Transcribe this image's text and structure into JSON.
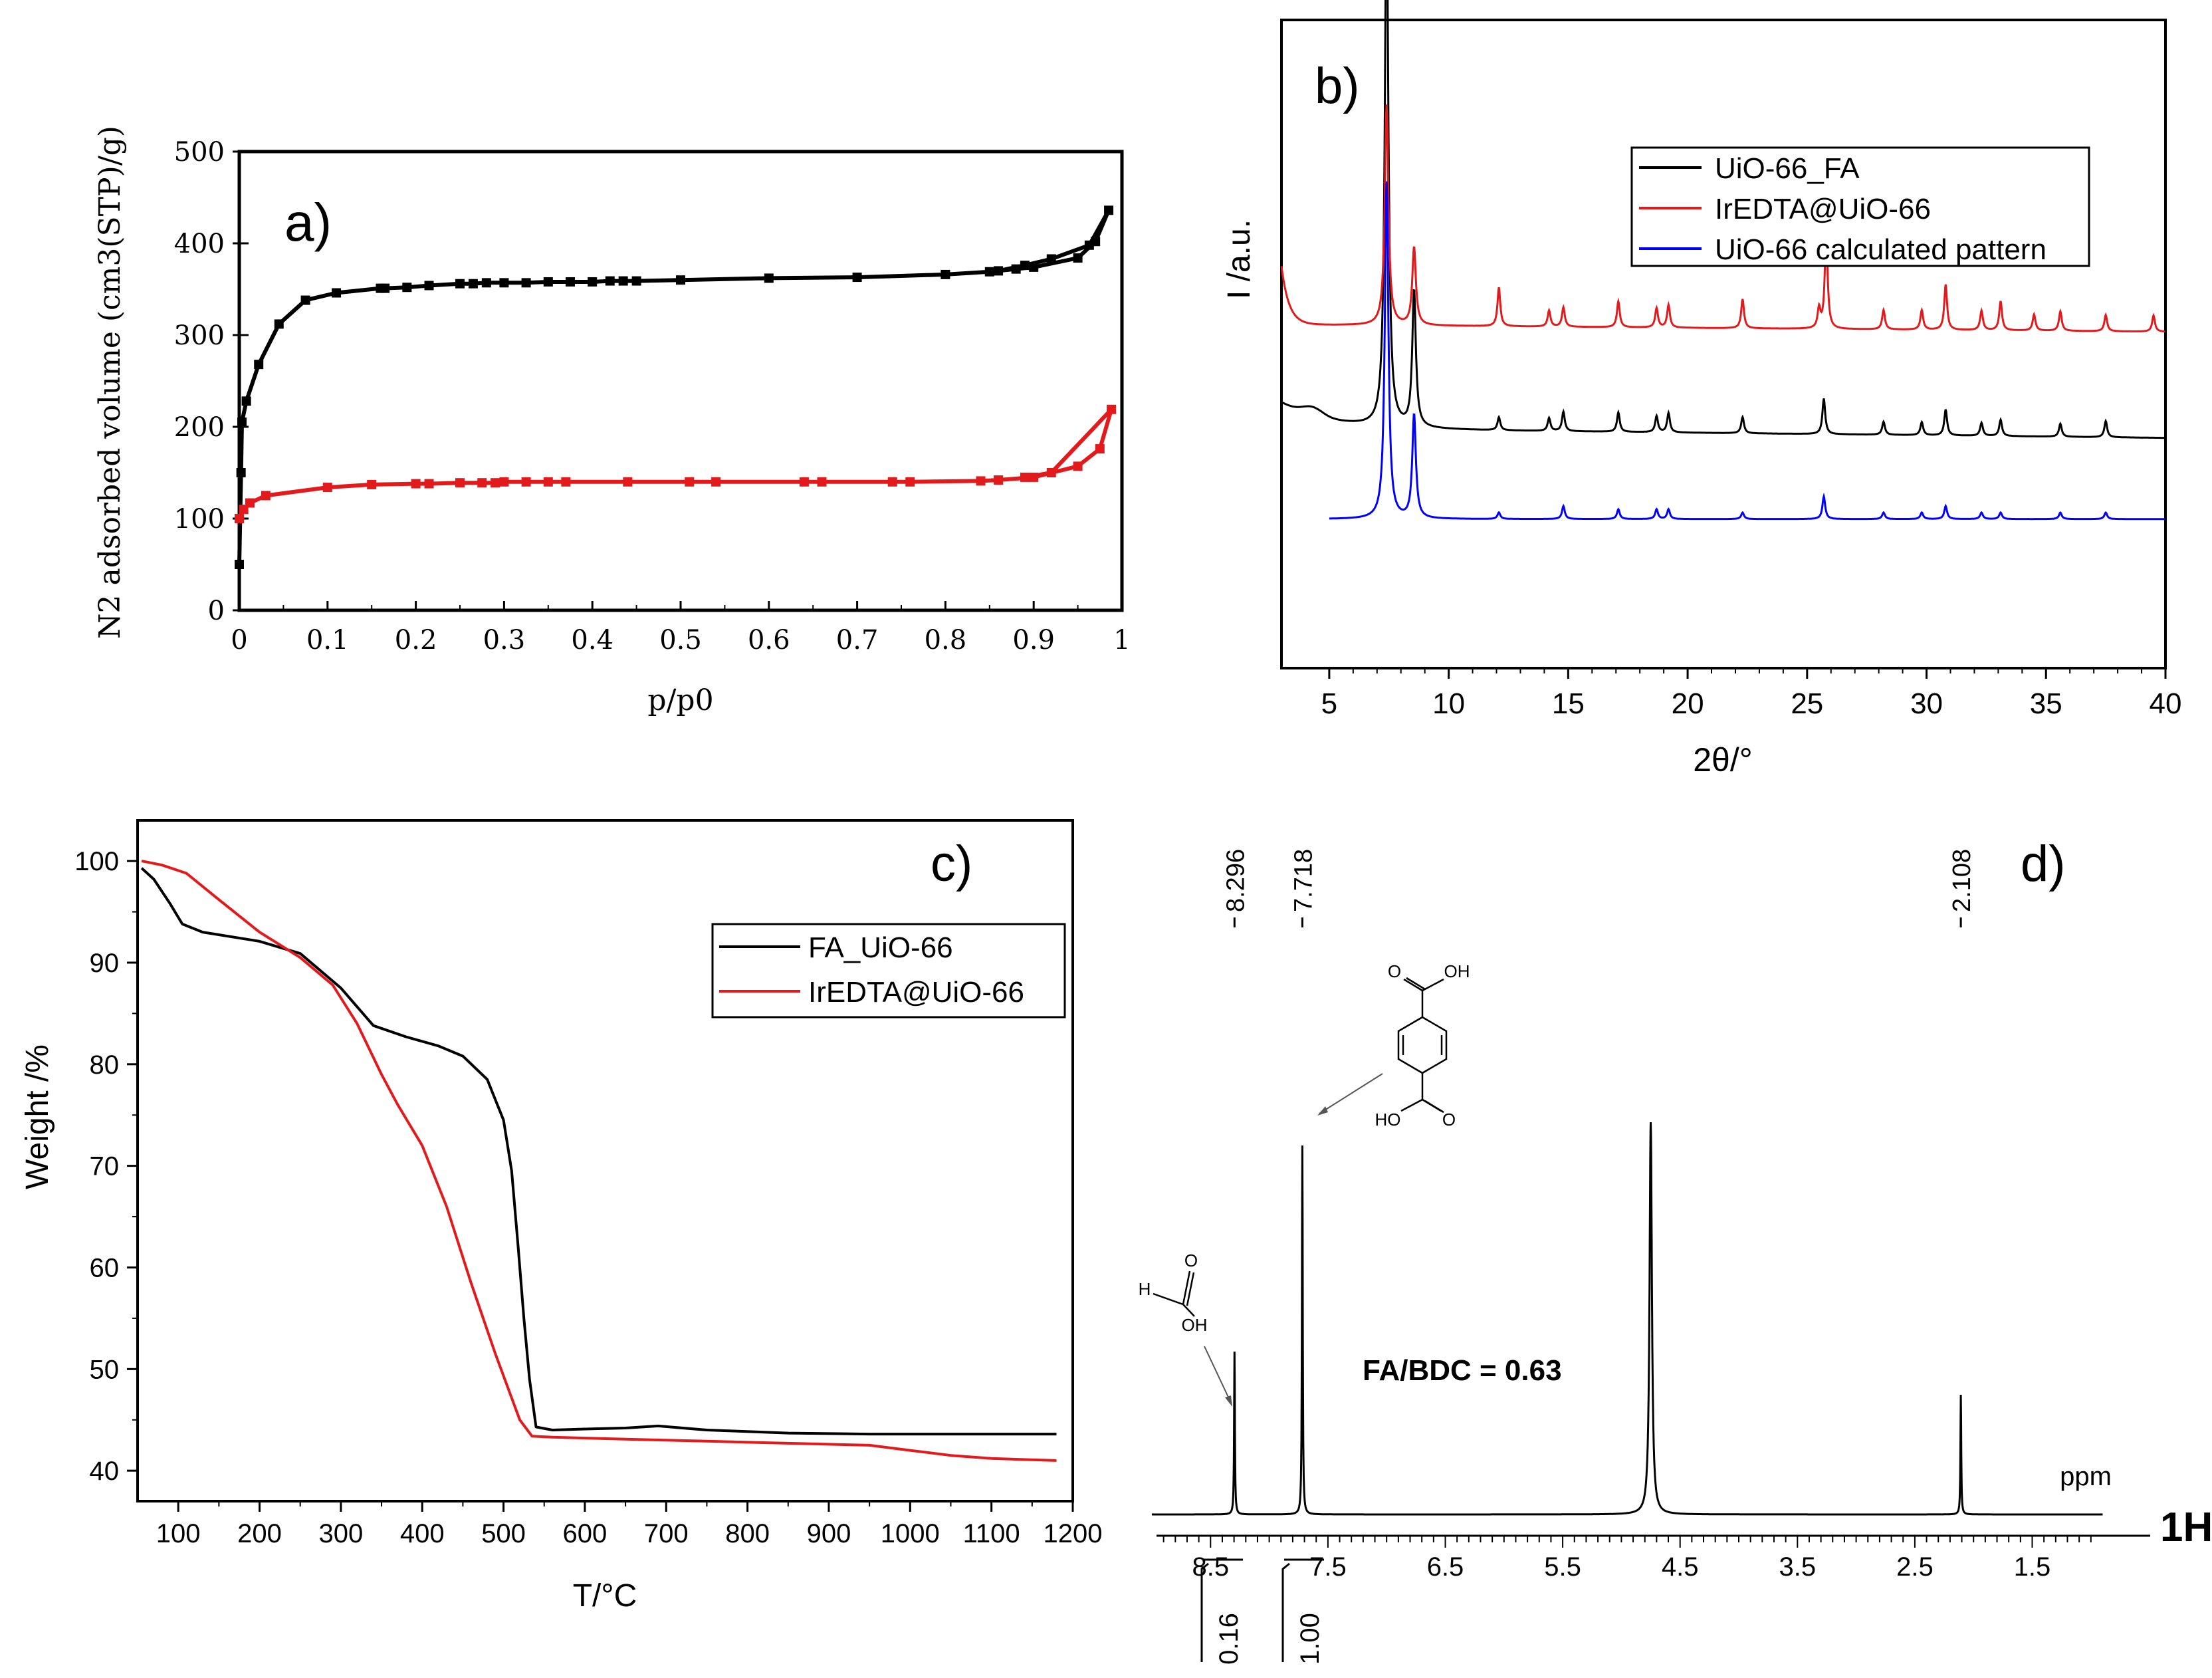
{
  "chart_data": [
    {
      "type": "line",
      "panel": "a)",
      "xlabel": "p/p0",
      "ylabel": "N2 adsorbed volume (cm3(STP)/g)",
      "xlim": [
        0,
        1
      ],
      "ylim": [
        0,
        500
      ],
      "xticks": [
        "0",
        "0.1",
        "0.2",
        "0.3",
        "0.4",
        "0.5",
        "0.6",
        "0.7",
        "0.8",
        "0.9",
        "1"
      ],
      "yticks": [
        "0",
        "100",
        "200",
        "300",
        "400",
        "500"
      ],
      "series": [
        {
          "name": "black isotherm",
          "color": "#000000",
          "points": [
            [
              0.0,
              50
            ],
            [
              0.002,
              150
            ],
            [
              0.003,
              205
            ],
            [
              0.008,
              228
            ],
            [
              0.022,
              268
            ],
            [
              0.045,
              312
            ],
            [
              0.075,
              338
            ],
            [
              0.11,
              346
            ],
            [
              0.16,
              351
            ],
            [
              0.165,
              351
            ],
            [
              0.19,
              352
            ],
            [
              0.215,
              354
            ],
            [
              0.25,
              356
            ],
            [
              0.265,
              356
            ],
            [
              0.28,
              357
            ],
            [
              0.3,
              357
            ],
            [
              0.325,
              357
            ],
            [
              0.35,
              358
            ],
            [
              0.375,
              358
            ],
            [
              0.4,
              358
            ],
            [
              0.42,
              359
            ],
            [
              0.435,
              359
            ],
            [
              0.45,
              359
            ],
            [
              0.5,
              360
            ],
            [
              0.6,
              362
            ],
            [
              0.7,
              363
            ],
            [
              0.8,
              366
            ],
            [
              0.85,
              369
            ],
            [
              0.88,
              372
            ],
            [
              0.9,
              374
            ],
            [
              0.95,
              384
            ],
            [
              0.97,
              402
            ],
            [
              0.985,
              436
            ],
            [
              0.963,
              398
            ],
            [
              0.92,
              383
            ],
            [
              0.89,
              376
            ],
            [
              0.86,
              370
            ]
          ]
        },
        {
          "name": "red isotherm",
          "color": "#e31a1c",
          "points": [
            [
              0.0,
              100
            ],
            [
              0.005,
              110
            ],
            [
              0.012,
              117
            ],
            [
              0.03,
              125
            ],
            [
              0.1,
              134
            ],
            [
              0.15,
              137
            ],
            [
              0.2,
              138
            ],
            [
              0.215,
              138
            ],
            [
              0.25,
              139
            ],
            [
              0.275,
              139
            ],
            [
              0.29,
              139
            ],
            [
              0.3,
              140
            ],
            [
              0.325,
              140
            ],
            [
              0.35,
              140
            ],
            [
              0.37,
              140
            ],
            [
              0.44,
              140
            ],
            [
              0.51,
              140
            ],
            [
              0.54,
              140
            ],
            [
              0.64,
              140
            ],
            [
              0.66,
              140
            ],
            [
              0.74,
              140
            ],
            [
              0.76,
              140
            ],
            [
              0.84,
              141
            ],
            [
              0.86,
              142
            ],
            [
              0.9,
              145
            ],
            [
              0.95,
              157
            ],
            [
              0.975,
              176
            ],
            [
              0.988,
              219
            ],
            [
              0.92,
              150
            ],
            [
              0.89,
              145
            ]
          ]
        }
      ]
    },
    {
      "type": "line",
      "panel": "b)",
      "xlabel": "2θ/°",
      "ylabel": "I /a.u.",
      "xlim": [
        3,
        40
      ],
      "xticks": [
        "5",
        "10",
        "15",
        "20",
        "25",
        "30",
        "35",
        "40"
      ],
      "legend": [
        "UiO-66_FA",
        "IrEDTA@UiO-66",
        "UiO-66 calculated pattern"
      ],
      "legend_position": "top-right",
      "series": [
        {
          "name": "UiO-66_FA",
          "color": "#000000",
          "baseline": 0.37,
          "peaks": [
            [
              7.4,
              0.82
            ],
            [
              8.55,
              0.21
            ],
            [
              12.1,
              0.02
            ],
            [
              14.2,
              0.02
            ],
            [
              14.8,
              0.03
            ],
            [
              17.1,
              0.03
            ],
            [
              18.7,
              0.025
            ],
            [
              19.2,
              0.03
            ],
            [
              22.3,
              0.025
            ],
            [
              25.7,
              0.055
            ],
            [
              28.2,
              0.02
            ],
            [
              29.8,
              0.02
            ],
            [
              30.8,
              0.04
            ],
            [
              32.3,
              0.02
            ],
            [
              33.1,
              0.025
            ],
            [
              35.6,
              0.02
            ],
            [
              37.5,
              0.025
            ]
          ]
        },
        {
          "name": "IrEDTA@UiO-66",
          "color": "#e31a1c",
          "baseline": 0.53,
          "peaks": [
            [
              7.4,
              0.34
            ],
            [
              8.55,
              0.12
            ],
            [
              12.1,
              0.06
            ],
            [
              14.2,
              0.025
            ],
            [
              14.8,
              0.03
            ],
            [
              17.1,
              0.04
            ],
            [
              18.7,
              0.03
            ],
            [
              19.2,
              0.035
            ],
            [
              22.3,
              0.045
            ],
            [
              25.5,
              0.03
            ],
            [
              25.8,
              0.15
            ],
            [
              28.2,
              0.03
            ],
            [
              29.8,
              0.03
            ],
            [
              30.8,
              0.07
            ],
            [
              32.3,
              0.03
            ],
            [
              33.1,
              0.045
            ],
            [
              34.5,
              0.025
            ],
            [
              35.6,
              0.03
            ],
            [
              37.5,
              0.025
            ],
            [
              39.5,
              0.025
            ]
          ]
        },
        {
          "name": "UiO-66 calculated pattern",
          "color": "#0000ff",
          "baseline": 0.23,
          "peaks": [
            [
              7.4,
              0.52
            ],
            [
              8.55,
              0.16
            ],
            [
              12.1,
              0.01
            ],
            [
              14.8,
              0.02
            ],
            [
              17.1,
              0.015
            ],
            [
              18.7,
              0.015
            ],
            [
              19.2,
              0.015
            ],
            [
              22.3,
              0.01
            ],
            [
              25.7,
              0.035
            ],
            [
              28.2,
              0.01
            ],
            [
              29.8,
              0.01
            ],
            [
              30.8,
              0.02
            ],
            [
              32.3,
              0.01
            ],
            [
              33.1,
              0.01
            ],
            [
              35.6,
              0.01
            ],
            [
              37.5,
              0.01
            ]
          ]
        }
      ]
    },
    {
      "type": "line",
      "panel": "c)",
      "xlabel": "T/°C",
      "ylabel": "Weight /%",
      "xlim": [
        50,
        1200
      ],
      "ylim": [
        37,
        104
      ],
      "xticks": [
        "100",
        "200",
        "300",
        "400",
        "500",
        "600",
        "700",
        "800",
        "900",
        "1000",
        "1100",
        "1200"
      ],
      "yticks": [
        "40",
        "50",
        "60",
        "70",
        "80",
        "90",
        "100"
      ],
      "legend": [
        "FA_UiO-66",
        "IrEDTA@UiO-66"
      ],
      "legend_position": "right",
      "series": [
        {
          "name": "FA_UiO-66",
          "color": "#000000",
          "points": [
            [
              55,
              99.3
            ],
            [
              70,
              98.2
            ],
            [
              90,
              95.8
            ],
            [
              105,
              93.8
            ],
            [
              130,
              93.0
            ],
            [
              200,
              92.1
            ],
            [
              250,
              90.9
            ],
            [
              300,
              87.5
            ],
            [
              340,
              83.8
            ],
            [
              380,
              82.7
            ],
            [
              420,
              81.8
            ],
            [
              450,
              80.8
            ],
            [
              480,
              78.5
            ],
            [
              500,
              74.5
            ],
            [
              510,
              69.5
            ],
            [
              518,
              62
            ],
            [
              525,
              55
            ],
            [
              532,
              49
            ],
            [
              540,
              44.3
            ],
            [
              560,
              44.0
            ],
            [
              600,
              44.1
            ],
            [
              650,
              44.2
            ],
            [
              690,
              44.4
            ],
            [
              750,
              44.0
            ],
            [
              850,
              43.7
            ],
            [
              950,
              43.6
            ],
            [
              1050,
              43.6
            ],
            [
              1150,
              43.6
            ],
            [
              1180,
              43.6
            ]
          ]
        },
        {
          "name": "IrEDTA@UiO-66",
          "color": "#e31a1c",
          "points": [
            [
              55,
              100
            ],
            [
              80,
              99.6
            ],
            [
              110,
              98.8
            ],
            [
              150,
              96.2
            ],
            [
              200,
              93.0
            ],
            [
              250,
              90.5
            ],
            [
              290,
              87.8
            ],
            [
              320,
              84.0
            ],
            [
              350,
              79.0
            ],
            [
              370,
              76.0
            ],
            [
              400,
              72.0
            ],
            [
              430,
              66.0
            ],
            [
              460,
              58.5
            ],
            [
              490,
              51.5
            ],
            [
              520,
              45.0
            ],
            [
              535,
              43.4
            ],
            [
              560,
              43.3
            ],
            [
              650,
              43.1
            ],
            [
              750,
              42.9
            ],
            [
              850,
              42.7
            ],
            [
              950,
              42.5
            ],
            [
              1000,
              42.0
            ],
            [
              1050,
              41.5
            ],
            [
              1100,
              41.2
            ],
            [
              1180,
              41.0
            ]
          ]
        }
      ]
    },
    {
      "type": "line",
      "panel": "d)",
      "xlabel": "ppm",
      "xlim": [
        9.0,
        0.9
      ],
      "xticks": [
        "8.5",
        "7.5",
        "6.5",
        "5.5",
        "4.5",
        "3.5",
        "2.5",
        "1.5"
      ],
      "peak_labels": [
        "8.296",
        "7.718",
        "2.108"
      ],
      "integrals": [
        "0.16",
        "1.00"
      ],
      "nucleus_label": "1H",
      "annotation": "FA/BDC = 0.63",
      "series": [
        {
          "name": "1H NMR spectrum",
          "color": "#000000",
          "peaks": [
            [
              8.296,
              0.245
            ],
            [
              7.718,
              0.555
            ],
            [
              4.75,
              0.59
            ],
            [
              2.108,
              0.18
            ]
          ]
        }
      ]
    }
  ],
  "structures": {
    "terephthalic_oh_top": "OH",
    "terephthalic_o_top": "O",
    "terephthalic_ho_bottom": "HO",
    "terephthalic_o_bottom": "O",
    "formic_o": "O",
    "formic_h": "H",
    "formic_oh": "OH"
  }
}
